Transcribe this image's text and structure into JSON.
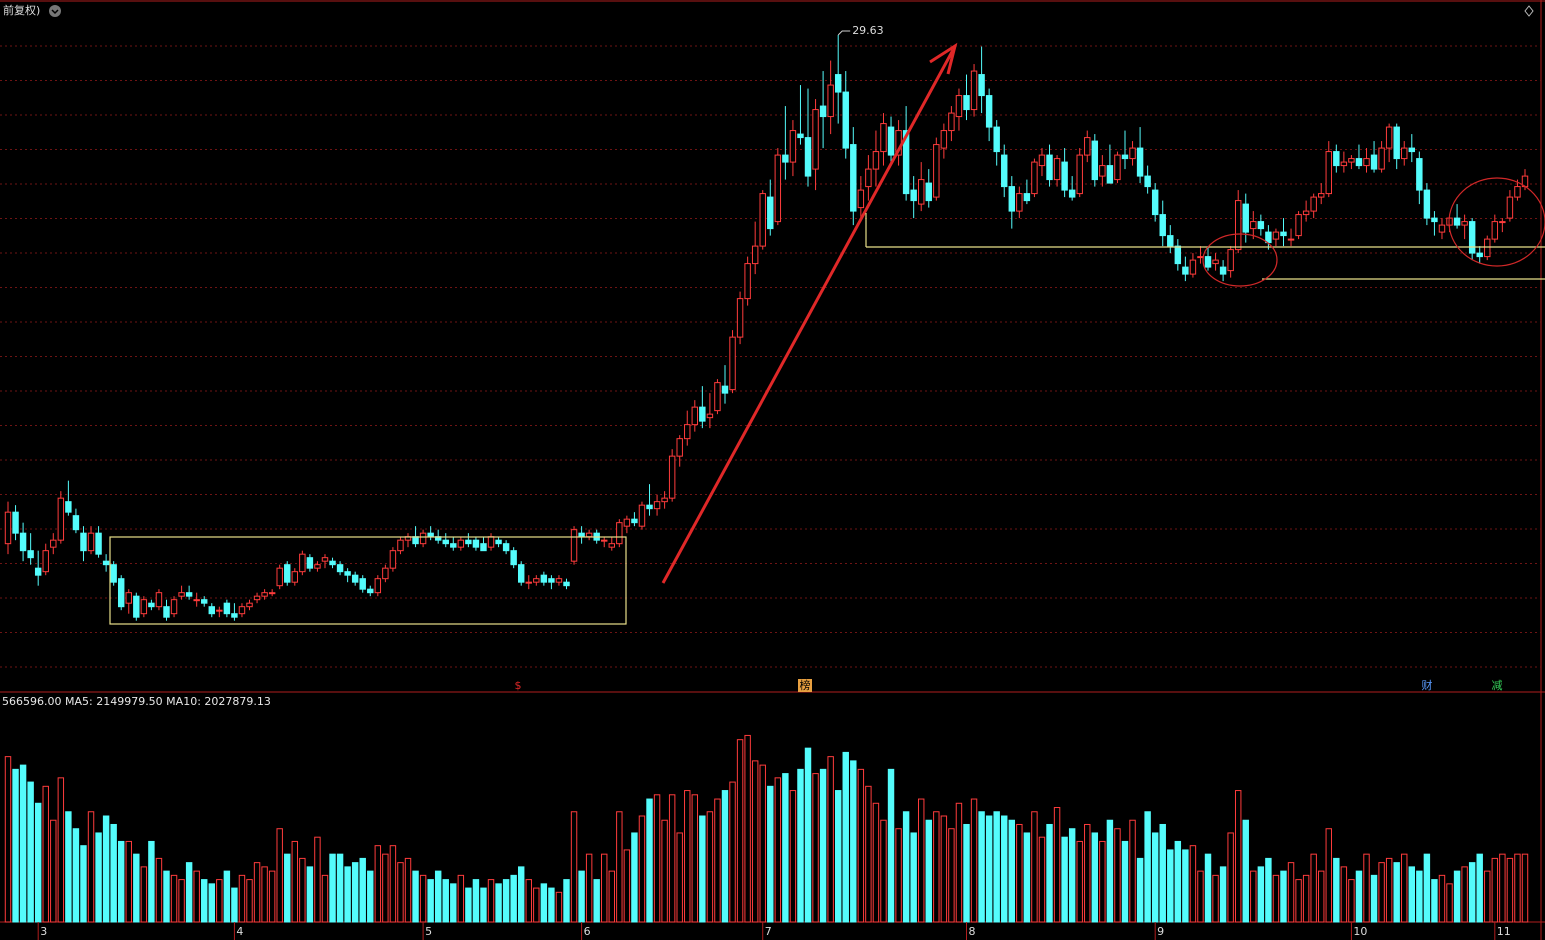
{
  "chart_data": {
    "type": "candlestick",
    "title": "前复权)",
    "up_color": "#ff3c3c",
    "down_color": "#54fcfc",
    "ylim": [
      10.92,
      30.63
    ],
    "volume_ylim": [
      0,
      5000000
    ],
    "volume_readout": "566596.00 MA5: 2149979.50 MA10: 2027879.13",
    "markers": [
      "$",
      "榜",
      "财",
      "减"
    ],
    "xticks": [
      {
        "value": 4,
        "label": "3"
      },
      {
        "value": 30,
        "label": "4"
      },
      {
        "value": 55,
        "label": "5"
      },
      {
        "value": 76,
        "label": "6"
      },
      {
        "value": 100,
        "label": "7"
      },
      {
        "value": 127,
        "label": "8"
      },
      {
        "value": 152,
        "label": "9"
      },
      {
        "value": 178,
        "label": "10"
      },
      {
        "value": 197,
        "label": "11"
      }
    ],
    "ohlc": [
      [
        15.1,
        16.3,
        14.8,
        16.0
      ],
      [
        16.0,
        16.2,
        15.2,
        15.4
      ],
      [
        15.4,
        15.7,
        14.6,
        14.9
      ],
      [
        14.9,
        15.4,
        14.5,
        14.7
      ],
      [
        14.4,
        14.9,
        13.9,
        14.2
      ],
      [
        14.3,
        15.1,
        14.2,
        14.9
      ],
      [
        15.0,
        15.4,
        14.8,
        15.2
      ],
      [
        15.2,
        16.6,
        15.1,
        16.4
      ],
      [
        16.3,
        16.9,
        15.9,
        16.0
      ],
      [
        15.9,
        16.1,
        15.4,
        15.5
      ],
      [
        15.4,
        15.6,
        14.6,
        14.9
      ],
      [
        14.9,
        15.6,
        14.8,
        15.4
      ],
      [
        15.4,
        15.6,
        14.7,
        14.8
      ],
      [
        14.6,
        14.8,
        14.3,
        14.5
      ],
      [
        14.5,
        14.6,
        13.9,
        14.0
      ],
      [
        14.1,
        14.2,
        13.2,
        13.3
      ],
      [
        13.4,
        13.8,
        13.1,
        13.7
      ],
      [
        13.6,
        13.7,
        12.9,
        13.0
      ],
      [
        13.1,
        13.6,
        13.0,
        13.5
      ],
      [
        13.4,
        13.5,
        13.2,
        13.3
      ],
      [
        13.3,
        13.8,
        13.2,
        13.7
      ],
      [
        13.3,
        13.5,
        12.9,
        13.0
      ],
      [
        13.1,
        13.6,
        13.0,
        13.5
      ],
      [
        13.6,
        13.9,
        13.5,
        13.7
      ],
      [
        13.7,
        13.9,
        13.5,
        13.6
      ],
      [
        13.5,
        13.7,
        13.3,
        13.5
      ],
      [
        13.5,
        13.6,
        13.3,
        13.4
      ],
      [
        13.3,
        13.4,
        13.0,
        13.1
      ],
      [
        13.2,
        13.3,
        13.0,
        13.2
      ],
      [
        13.4,
        13.5,
        13.0,
        13.1
      ],
      [
        13.1,
        13.4,
        12.9,
        13.0
      ],
      [
        13.1,
        13.4,
        13.0,
        13.3
      ],
      [
        13.3,
        13.5,
        13.2,
        13.4
      ],
      [
        13.5,
        13.7,
        13.4,
        13.6
      ],
      [
        13.6,
        13.8,
        13.5,
        13.7
      ],
      [
        13.7,
        13.8,
        13.6,
        13.7
      ],
      [
        13.9,
        14.5,
        13.8,
        14.4
      ],
      [
        14.5,
        14.6,
        13.9,
        14.0
      ],
      [
        14.0,
        14.4,
        13.9,
        14.3
      ],
      [
        14.3,
        14.9,
        14.2,
        14.8
      ],
      [
        14.7,
        14.8,
        14.3,
        14.4
      ],
      [
        14.4,
        14.6,
        14.3,
        14.5
      ],
      [
        14.6,
        14.8,
        14.4,
        14.7
      ],
      [
        14.6,
        14.7,
        14.4,
        14.5
      ],
      [
        14.5,
        14.6,
        14.2,
        14.3
      ],
      [
        14.3,
        14.4,
        14.0,
        14.2
      ],
      [
        14.2,
        14.3,
        13.9,
        14.0
      ],
      [
        14.1,
        14.2,
        13.7,
        13.8
      ],
      [
        13.8,
        13.9,
        13.6,
        13.7
      ],
      [
        13.7,
        14.2,
        13.6,
        14.1
      ],
      [
        14.1,
        14.5,
        14.0,
        14.4
      ],
      [
        14.4,
        15.0,
        14.3,
        14.9
      ],
      [
        14.9,
        15.3,
        14.8,
        15.2
      ],
      [
        15.2,
        15.4,
        15.0,
        15.3
      ],
      [
        15.3,
        15.6,
        15.0,
        15.1
      ],
      [
        15.1,
        15.5,
        15.0,
        15.4
      ],
      [
        15.4,
        15.6,
        15.2,
        15.3
      ],
      [
        15.3,
        15.5,
        15.1,
        15.2
      ],
      [
        15.2,
        15.4,
        15.0,
        15.1
      ],
      [
        15.1,
        15.3,
        14.9,
        15.0
      ],
      [
        15.0,
        15.3,
        14.9,
        15.2
      ],
      [
        15.2,
        15.4,
        15.0,
        15.1
      ],
      [
        15.2,
        15.3,
        14.9,
        15.0
      ],
      [
        15.1,
        15.3,
        14.9,
        14.9
      ],
      [
        15.0,
        15.4,
        14.9,
        15.3
      ],
      [
        15.2,
        15.3,
        15.0,
        15.1
      ],
      [
        15.1,
        15.2,
        14.8,
        14.9
      ],
      [
        14.9,
        15.0,
        14.4,
        14.5
      ],
      [
        14.5,
        14.6,
        13.9,
        14.0
      ],
      [
        14.0,
        14.2,
        13.8,
        14.0
      ],
      [
        14.0,
        14.2,
        13.9,
        14.1
      ],
      [
        14.2,
        14.3,
        13.9,
        14.0
      ],
      [
        14.1,
        14.2,
        13.8,
        14.0
      ],
      [
        14.0,
        14.2,
        13.9,
        14.1
      ],
      [
        14.0,
        14.1,
        13.8,
        13.9
      ],
      [
        14.6,
        15.6,
        14.5,
        15.5
      ],
      [
        15.4,
        15.6,
        15.1,
        15.3
      ],
      [
        15.3,
        15.5,
        15.2,
        15.4
      ],
      [
        15.4,
        15.5,
        15.1,
        15.2
      ],
      [
        15.2,
        15.3,
        15.0,
        15.2
      ],
      [
        15.0,
        15.3,
        14.9,
        15.1
      ],
      [
        15.1,
        15.8,
        15.0,
        15.7
      ],
      [
        15.6,
        15.9,
        15.4,
        15.8
      ],
      [
        15.8,
        16.0,
        15.6,
        15.7
      ],
      [
        15.6,
        16.3,
        15.5,
        16.2
      ],
      [
        16.2,
        16.8,
        15.9,
        16.1
      ],
      [
        16.1,
        16.5,
        15.9,
        16.3
      ],
      [
        16.3,
        16.6,
        16.1,
        16.4
      ],
      [
        16.4,
        17.8,
        16.3,
        17.6
      ],
      [
        17.6,
        18.2,
        17.3,
        18.1
      ],
      [
        18.1,
        18.9,
        17.9,
        18.5
      ],
      [
        18.5,
        19.2,
        18.3,
        19.0
      ],
      [
        19.0,
        19.6,
        18.4,
        18.6
      ],
      [
        18.7,
        19.4,
        18.4,
        18.8
      ],
      [
        18.9,
        19.8,
        18.8,
        19.7
      ],
      [
        19.6,
        20.2,
        19.1,
        19.4
      ],
      [
        19.5,
        21.2,
        19.4,
        21.0
      ],
      [
        21.0,
        22.3,
        20.8,
        22.1
      ],
      [
        22.1,
        23.3,
        21.9,
        23.1
      ],
      [
        23.1,
        24.3,
        22.8,
        23.6
      ],
      [
        23.6,
        25.2,
        23.5,
        25.1
      ],
      [
        25.0,
        25.5,
        23.9,
        24.1
      ],
      [
        24.3,
        26.4,
        24.2,
        26.2
      ],
      [
        26.2,
        27.6,
        25.5,
        26.0
      ],
      [
        26.0,
        27.2,
        25.6,
        26.9
      ],
      [
        26.8,
        28.2,
        26.5,
        26.7
      ],
      [
        26.7,
        28.1,
        25.3,
        25.6
      ],
      [
        25.8,
        27.8,
        25.2,
        27.5
      ],
      [
        27.6,
        28.6,
        26.4,
        27.3
      ],
      [
        27.3,
        28.9,
        26.8,
        28.2
      ],
      [
        28.5,
        29.63,
        27.1,
        28.0
      ],
      [
        28.0,
        28.6,
        26.1,
        26.4
      ],
      [
        26.5,
        27.0,
        24.2,
        24.6
      ],
      [
        24.7,
        25.6,
        24.3,
        25.2
      ],
      [
        25.3,
        26.2,
        24.9,
        25.8
      ],
      [
        25.8,
        26.9,
        25.3,
        26.3
      ],
      [
        26.3,
        27.4,
        25.9,
        27.1
      ],
      [
        27.0,
        27.3,
        26.0,
        26.2
      ],
      [
        26.2,
        27.2,
        25.9,
        26.9
      ],
      [
        26.9,
        27.6,
        24.9,
        25.1
      ],
      [
        25.2,
        25.6,
        24.4,
        24.9
      ],
      [
        24.8,
        26.0,
        24.6,
        25.5
      ],
      [
        25.4,
        25.8,
        24.7,
        24.9
      ],
      [
        25.0,
        26.7,
        24.9,
        26.5
      ],
      [
        26.4,
        27.1,
        26.1,
        26.9
      ],
      [
        26.9,
        27.6,
        26.6,
        27.4
      ],
      [
        27.3,
        28.1,
        26.9,
        27.9
      ],
      [
        27.9,
        28.5,
        27.2,
        27.5
      ],
      [
        27.5,
        28.8,
        27.3,
        28.6
      ],
      [
        28.5,
        29.3,
        27.4,
        27.9
      ],
      [
        27.9,
        28.1,
        26.6,
        27.0
      ],
      [
        27.0,
        27.2,
        25.9,
        26.3
      ],
      [
        26.2,
        26.5,
        25.0,
        25.3
      ],
      [
        25.3,
        25.6,
        24.1,
        24.6
      ],
      [
        24.6,
        25.3,
        24.4,
        25.1
      ],
      [
        25.1,
        25.5,
        24.8,
        24.9
      ],
      [
        25.1,
        26.1,
        25.0,
        26.0
      ],
      [
        25.9,
        26.4,
        25.6,
        26.2
      ],
      [
        26.2,
        26.5,
        25.3,
        25.5
      ],
      [
        25.5,
        26.2,
        25.3,
        26.1
      ],
      [
        26.0,
        26.4,
        25.0,
        25.2
      ],
      [
        25.2,
        25.6,
        24.9,
        25.0
      ],
      [
        25.1,
        26.4,
        25.0,
        26.2
      ],
      [
        26.2,
        26.9,
        26.0,
        26.7
      ],
      [
        26.6,
        26.8,
        25.3,
        25.5
      ],
      [
        25.6,
        26.2,
        25.3,
        25.9
      ],
      [
        25.9,
        26.5,
        25.4,
        25.4
      ],
      [
        25.5,
        26.3,
        25.4,
        26.2
      ],
      [
        26.2,
        26.9,
        25.8,
        26.1
      ],
      [
        26.1,
        26.6,
        25.9,
        26.4
      ],
      [
        26.4,
        27.0,
        25.4,
        25.6
      ],
      [
        25.6,
        25.9,
        25.1,
        25.3
      ],
      [
        25.2,
        25.4,
        24.3,
        24.5
      ],
      [
        24.5,
        24.9,
        23.6,
        23.9
      ],
      [
        23.9,
        24.2,
        23.4,
        23.6
      ],
      [
        23.6,
        23.8,
        22.9,
        23.1
      ],
      [
        23.0,
        23.3,
        22.6,
        22.8
      ],
      [
        22.8,
        23.4,
        22.7,
        23.2
      ],
      [
        23.3,
        23.6,
        23.1,
        23.3
      ],
      [
        23.3,
        23.6,
        22.9,
        23.0
      ],
      [
        23.1,
        23.4,
        22.9,
        23.2
      ],
      [
        23.0,
        23.2,
        22.6,
        22.8
      ],
      [
        22.9,
        23.6,
        22.7,
        23.5
      ],
      [
        23.5,
        25.2,
        23.4,
        24.9
      ],
      [
        24.8,
        25.1,
        23.7,
        24.0
      ],
      [
        24.1,
        24.6,
        23.8,
        24.3
      ],
      [
        24.3,
        24.5,
        23.9,
        24.1
      ],
      [
        24.0,
        24.2,
        23.5,
        23.7
      ],
      [
        23.8,
        24.1,
        23.6,
        24.0
      ],
      [
        24.0,
        24.4,
        23.6,
        23.9
      ],
      [
        23.8,
        24.1,
        23.6,
        23.8
      ],
      [
        23.9,
        24.6,
        23.8,
        24.5
      ],
      [
        24.5,
        24.9,
        24.3,
        24.6
      ],
      [
        24.6,
        25.1,
        24.4,
        25.0
      ],
      [
        25.0,
        25.4,
        24.8,
        25.1
      ],
      [
        25.1,
        26.6,
        25.0,
        26.3
      ],
      [
        26.3,
        26.5,
        25.7,
        25.9
      ],
      [
        25.9,
        26.3,
        25.7,
        26.0
      ],
      [
        26.0,
        26.2,
        25.8,
        26.1
      ],
      [
        26.1,
        26.5,
        25.8,
        25.9
      ],
      [
        25.9,
        26.4,
        25.7,
        26.1
      ],
      [
        26.2,
        26.6,
        25.7,
        25.8
      ],
      [
        25.8,
        26.6,
        25.7,
        26.4
      ],
      [
        26.4,
        27.1,
        26.0,
        27.0
      ],
      [
        27.0,
        27.1,
        25.8,
        26.1
      ],
      [
        26.1,
        26.6,
        25.9,
        26.4
      ],
      [
        26.4,
        26.8,
        26.0,
        26.3
      ],
      [
        26.1,
        26.3,
        24.8,
        25.2
      ],
      [
        25.2,
        25.4,
        24.2,
        24.4
      ],
      [
        24.4,
        24.6,
        23.9,
        24.3
      ],
      [
        24.0,
        24.4,
        23.8,
        24.2
      ],
      [
        24.2,
        24.5,
        24.0,
        24.4
      ],
      [
        24.4,
        24.8,
        24.1,
        24.2
      ],
      [
        24.2,
        24.5,
        23.8,
        24.3
      ],
      [
        24.3,
        24.4,
        23.2,
        23.4
      ],
      [
        23.4,
        23.6,
        23.1,
        23.3
      ],
      [
        23.3,
        23.9,
        23.2,
        23.8
      ],
      [
        23.8,
        24.5,
        23.7,
        24.3
      ],
      [
        24.3,
        24.4,
        24.0,
        24.3
      ],
      [
        24.4,
        25.2,
        24.3,
        25.0
      ],
      [
        25.0,
        25.5,
        24.9,
        25.3
      ],
      [
        25.3,
        25.8,
        25.2,
        25.6
      ]
    ],
    "volumes": [
      3900000.0,
      3600000.0,
      3700000.0,
      3300000.0,
      2800000.0,
      3200000.0,
      2400000.0,
      3400000.0,
      2600000.0,
      2200000.0,
      1800000.0,
      2600000.0,
      2100000.0,
      2500000.0,
      2300000.0,
      1900000.0,
      1900000.0,
      1600000.0,
      1300000.0,
      1900000.0,
      1500000.0,
      1200000.0,
      1100000.0,
      1000000.0,
      1400000.0,
      1200000.0,
      1000000.0,
      900000.0,
      1000000.0,
      1200000.0,
      800000.0,
      1100000.0,
      1000000.0,
      1400000.0,
      1300000.0,
      1200000.0,
      2200000.0,
      1600000.0,
      1900000.0,
      1500000.0,
      1300000.0,
      2000000.0,
      1100000.0,
      1600000.0,
      1600000.0,
      1300000.0,
      1400000.0,
      1500000.0,
      1200000.0,
      1800000.0,
      1600000.0,
      1800000.0,
      1400000.0,
      1500000.0,
      1200000.0,
      1100000.0,
      1000000.0,
      1200000.0,
      1000000.0,
      900000.0,
      1100000.0,
      800000.0,
      1000000.0,
      800000.0,
      1000000.0,
      900000.0,
      1000000.0,
      1100000.0,
      1300000.0,
      1000000.0,
      800000.0,
      900000.0,
      800000.0,
      700000.0,
      1000000.0,
      2600000.0,
      1200000.0,
      1600000.0,
      1000000.0,
      1600000.0,
      1200000.0,
      2600000.0,
      1700000.0,
      2100000.0,
      2500000.0,
      2900000.0,
      3000000.0,
      2400000.0,
      3000000.0,
      2100000.0,
      3100000.0,
      3000000.0,
      2500000.0,
      2600000.0,
      2900000.0,
      3100000.0,
      3300000.0,
      4300000.0,
      4400000.0,
      3800000.0,
      3700000.0,
      3200000.0,
      3400000.0,
      3500000.0,
      3100000.0,
      3600000.0,
      4100000.0,
      3500000.0,
      3600000.0,
      3900000.0,
      3100000.0,
      4000000.0,
      3800000.0,
      3600000.0,
      3200000.0,
      2800000.0,
      2400000.0,
      3600000.0,
      2200000.0,
      2600000.0,
      2100000.0,
      2900000.0,
      2400000.0,
      2600000.0,
      2500000.0,
      2200000.0,
      2800000.0,
      2300000.0,
      2900000.0,
      2600000.0,
      2500000.0,
      2600000.0,
      2500000.0,
      2400000.0,
      2300000.0,
      2100000.0,
      2600000.0,
      2000000.0,
      2300000.0,
      2700000.0,
      2000000.0,
      2200000.0,
      1900000.0,
      2300000.0,
      2100000.0,
      1900000.0,
      2400000.0,
      2200000.0,
      1900000.0,
      2400000.0,
      1500000.0,
      2600000.0,
      2100000.0,
      2300000.0,
      1700000.0,
      1900000.0,
      1700000.0,
      1800000.0,
      1200000.0,
      1600000.0,
      1100000.0,
      1300000.0,
      2100000.0,
      3100000.0,
      2400000.0,
      1200000.0,
      1300000.0,
      1500000.0,
      1100000.0,
      1200000.0,
      1400000.0,
      1000000.0,
      1100000.0,
      1600000.0,
      1200000.0,
      2200000.0,
      1500000.0,
      1300000.0,
      1000000.0,
      1200000.0,
      1600000.0,
      1100000.0,
      1400000.0,
      1500000.0,
      1400000.0,
      1600000.0,
      1300000.0,
      1200000.0,
      1600000.0,
      1000000.0,
      1100000.0,
      900000.0,
      1200000.0,
      1300000.0,
      1400000.0,
      1600000.0,
      1200000.0,
      1500000.0,
      1600000.0,
      1500000.0,
      1600000.0,
      1600000.0
    ]
  }
}
